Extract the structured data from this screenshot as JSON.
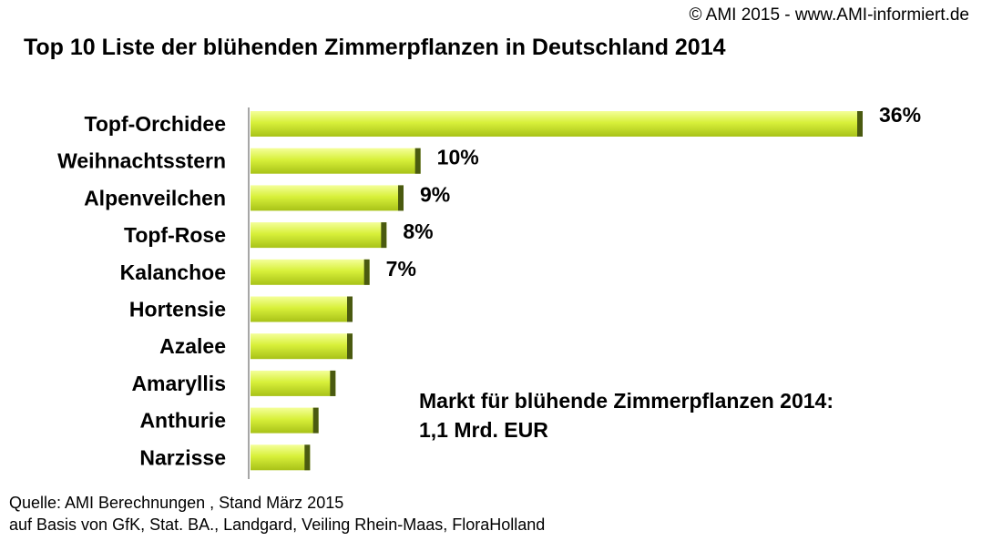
{
  "header": {
    "copyright": "© AMI 2015 - www.AMI-informiert.de",
    "title": "Top 10 Liste der blühenden Zimmerpflanzen in Deutschland 2014"
  },
  "annotation": {
    "line1": "Markt für blühende Zimmerpflanzen 2014:",
    "line2": "1,1 Mrd. EUR"
  },
  "footer": {
    "source_line1": "Quelle: AMI Berechnungen , Stand März 2015",
    "source_line2": "auf  Basis  von GfK,  Stat. BA., Landgard, Veiling Rhein-Maas, FloraHolland"
  },
  "colors": {
    "bar_light": "#f4ff9a",
    "bar_mid": "#d8f03a",
    "bar_dark": "#a8c218",
    "bar_end": "#4a5a10",
    "axis": "#888888"
  },
  "chart_data": {
    "type": "bar",
    "orientation": "horizontal",
    "title": "Top 10 Liste der blühenden Zimmerpflanzen in Deutschland 2014",
    "categories": [
      "Topf-Orchidee",
      "Weihnachtsstern",
      "Alpenveilchen",
      "Topf-Rose",
      "Kalanchoe",
      "Hortensie",
      "Azalee",
      "Amaryllis",
      "Anthurie",
      "Narzisse"
    ],
    "values": [
      36,
      10,
      9,
      8,
      7,
      6,
      6,
      5,
      4,
      3.5
    ],
    "value_labels": [
      "36%",
      "10%",
      "9%",
      "8%",
      "7%",
      "",
      "",
      "",
      "",
      ""
    ],
    "unit": "%",
    "xlim": [
      0,
      36
    ],
    "grid": false,
    "legend": "none"
  }
}
